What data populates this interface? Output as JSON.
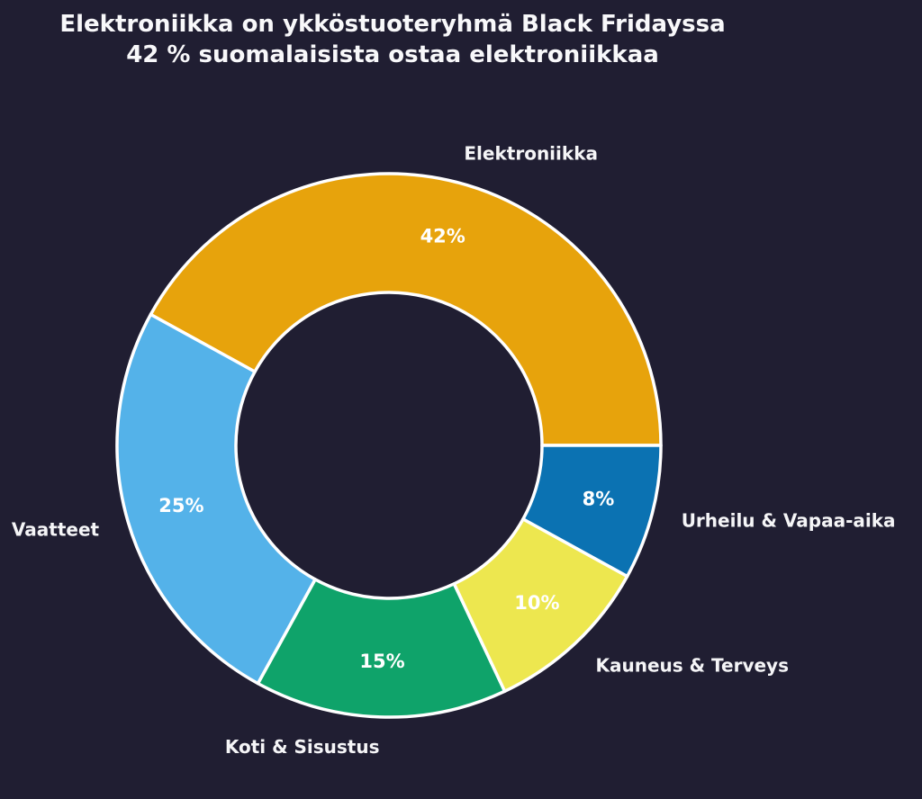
{
  "title": {
    "line1": "Elektroniikka on ykköstuoteryhmä Black Fridayssa",
    "line2": "42 % suomalaisista ostaa elektroniikkaa"
  },
  "colors": {
    "background": "#201e32",
    "title_text": "#f8f8fa",
    "category_label_text": "#f5f5f7",
    "percent_label_text": "#ffffff",
    "slice_border": "#ffffff"
  },
  "chart_data": {
    "type": "pie",
    "subtype": "donut",
    "title": "Elektroniikka on ykköstuoteryhmä Black Fridayssa — 42 % suomalaisista ostaa elektroniikkaa",
    "start_angle_deg": 0,
    "direction": "counterclockwise",
    "inner_radius_ratio": 0.56,
    "legend": "none",
    "slices": [
      {
        "label": "Elektroniikka",
        "value": 42,
        "pct_label": "42%",
        "color": "#e7a30c"
      },
      {
        "label": "Vaatteet",
        "value": 25,
        "pct_label": "25%",
        "color": "#54b2e9"
      },
      {
        "label": "Koti & Sisustus",
        "value": 15,
        "pct_label": "15%",
        "color": "#0fa36a"
      },
      {
        "label": "Kauneus & Terveys",
        "value": 10,
        "pct_label": "10%",
        "color": "#ede74f"
      },
      {
        "label": "Urheilu & Vapaa-aika",
        "value": 8,
        "pct_label": "8%",
        "color": "#0b72b2"
      }
    ]
  }
}
